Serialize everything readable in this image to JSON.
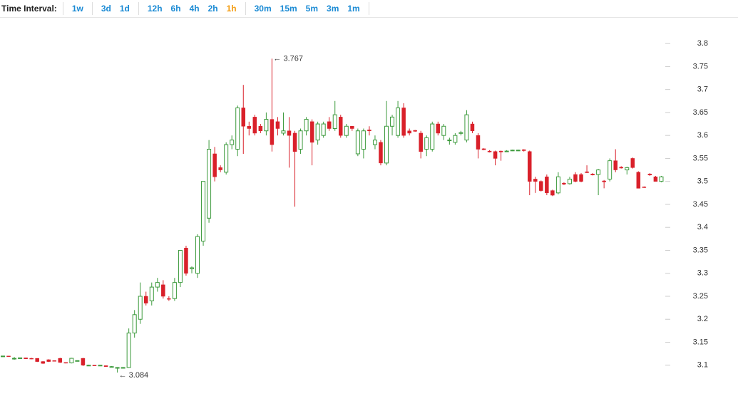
{
  "toolbar": {
    "label": "Time Interval:",
    "groups": [
      [
        "1w"
      ],
      [
        "3d",
        "1d"
      ],
      [
        "12h",
        "6h",
        "4h",
        "2h",
        "1h"
      ],
      [
        "30m",
        "15m",
        "5m",
        "3m",
        "1m"
      ]
    ],
    "selected": "1h"
  },
  "chart_data": {
    "type": "candlestick",
    "up_color": "#3c9a3c",
    "down_color": "#d9202a",
    "ylim": [
      3.033,
      3.856
    ],
    "yticks": [
      3.1,
      3.15,
      3.2,
      3.25,
      3.3,
      3.35,
      3.4,
      3.45,
      3.5,
      3.55,
      3.6,
      3.65,
      3.7,
      3.75,
      3.8
    ],
    "annotations": [
      {
        "text": "← 3.767",
        "value": 3.767
      },
      {
        "text": "← 3.084",
        "value": 3.084
      }
    ],
    "candles": [
      {
        "open": 3.12,
        "high": 3.12,
        "low": 3.12,
        "close": 3.12
      },
      {
        "open": 3.12,
        "high": 3.12,
        "low": 3.119,
        "close": 3.119
      },
      {
        "open": 3.115,
        "high": 3.118,
        "low": 3.112,
        "close": 3.115
      },
      {
        "open": 3.115,
        "high": 3.116,
        "low": 3.114,
        "close": 3.116
      },
      {
        "open": 3.116,
        "high": 3.116,
        "low": 3.114,
        "close": 3.114
      },
      {
        "open": 3.115,
        "high": 3.116,
        "low": 3.113,
        "close": 3.114
      },
      {
        "open": 3.115,
        "high": 3.115,
        "low": 3.107,
        "close": 3.108
      },
      {
        "open": 3.108,
        "high": 3.109,
        "low": 3.103,
        "close": 3.104
      },
      {
        "open": 3.112,
        "high": 3.113,
        "low": 3.107,
        "close": 3.108
      },
      {
        "open": 3.11,
        "high": 3.11,
        "low": 3.109,
        "close": 3.109
      },
      {
        "open": 3.115,
        "high": 3.116,
        "low": 3.105,
        "close": 3.106
      },
      {
        "open": 3.106,
        "high": 3.106,
        "low": 3.104,
        "close": 3.105
      },
      {
        "open": 3.105,
        "high": 3.116,
        "low": 3.104,
        "close": 3.115
      },
      {
        "open": 3.11,
        "high": 3.11,
        "low": 3.109,
        "close": 3.11
      },
      {
        "open": 3.115,
        "high": 3.116,
        "low": 3.098,
        "close": 3.1
      },
      {
        "open": 3.1,
        "high": 3.101,
        "low": 3.099,
        "close": 3.1
      },
      {
        "open": 3.1,
        "high": 3.1,
        "low": 3.099,
        "close": 3.099
      },
      {
        "open": 3.1,
        "high": 3.1,
        "low": 3.099,
        "close": 3.1
      },
      {
        "open": 3.099,
        "high": 3.099,
        "low": 3.097,
        "close": 3.097
      },
      {
        "open": 3.097,
        "high": 3.098,
        "low": 3.096,
        "close": 3.097
      },
      {
        "open": 3.095,
        "high": 3.096,
        "low": 3.084,
        "close": 3.095
      },
      {
        "open": 3.095,
        "high": 3.096,
        "low": 3.094,
        "close": 3.095
      },
      {
        "open": 3.095,
        "high": 3.18,
        "low": 3.094,
        "close": 3.17
      },
      {
        "open": 3.17,
        "high": 3.22,
        "low": 3.16,
        "close": 3.21
      },
      {
        "open": 3.2,
        "high": 3.28,
        "low": 3.19,
        "close": 3.25
      },
      {
        "open": 3.25,
        "high": 3.26,
        "low": 3.23,
        "close": 3.235
      },
      {
        "open": 3.24,
        "high": 3.28,
        "low": 3.23,
        "close": 3.27
      },
      {
        "open": 3.27,
        "high": 3.29,
        "low": 3.26,
        "close": 3.28
      },
      {
        "open": 3.275,
        "high": 3.285,
        "low": 3.245,
        "close": 3.25
      },
      {
        "open": 3.245,
        "high": 3.25,
        "low": 3.24,
        "close": 3.244
      },
      {
        "open": 3.245,
        "high": 3.29,
        "low": 3.24,
        "close": 3.28
      },
      {
        "open": 3.28,
        "high": 3.35,
        "low": 3.27,
        "close": 3.35
      },
      {
        "open": 3.355,
        "high": 3.36,
        "low": 3.295,
        "close": 3.3
      },
      {
        "open": 3.31,
        "high": 3.315,
        "low": 3.3,
        "close": 3.312
      },
      {
        "open": 3.3,
        "high": 3.385,
        "low": 3.29,
        "close": 3.38
      },
      {
        "open": 3.37,
        "high": 3.5,
        "low": 3.36,
        "close": 3.5
      },
      {
        "open": 3.42,
        "high": 3.59,
        "low": 3.41,
        "close": 3.57
      },
      {
        "open": 3.56,
        "high": 3.575,
        "low": 3.5,
        "close": 3.51
      },
      {
        "open": 3.53,
        "high": 3.535,
        "low": 3.52,
        "close": 3.525
      },
      {
        "open": 3.52,
        "high": 3.585,
        "low": 3.515,
        "close": 3.58
      },
      {
        "open": 3.58,
        "high": 3.6,
        "low": 3.57,
        "close": 3.59
      },
      {
        "open": 3.57,
        "high": 3.665,
        "low": 3.555,
        "close": 3.66
      },
      {
        "open": 3.66,
        "high": 3.71,
        "low": 3.56,
        "close": 3.62
      },
      {
        "open": 3.62,
        "high": 3.63,
        "low": 3.6,
        "close": 3.615
      },
      {
        "open": 3.64,
        "high": 3.645,
        "low": 3.6,
        "close": 3.605
      },
      {
        "open": 3.62,
        "high": 3.625,
        "low": 3.605,
        "close": 3.61
      },
      {
        "open": 3.61,
        "high": 3.65,
        "low": 3.6,
        "close": 3.635
      },
      {
        "open": 3.635,
        "high": 3.767,
        "low": 3.565,
        "close": 3.58
      },
      {
        "open": 3.63,
        "high": 3.64,
        "low": 3.6,
        "close": 3.615
      },
      {
        "open": 3.605,
        "high": 3.65,
        "low": 3.6,
        "close": 3.61
      },
      {
        "open": 3.61,
        "high": 3.64,
        "low": 3.53,
        "close": 3.6
      },
      {
        "open": 3.605,
        "high": 3.61,
        "low": 3.445,
        "close": 3.565
      },
      {
        "open": 3.57,
        "high": 3.615,
        "low": 3.56,
        "close": 3.61
      },
      {
        "open": 3.61,
        "high": 3.64,
        "low": 3.6,
        "close": 3.635
      },
      {
        "open": 3.63,
        "high": 3.635,
        "low": 3.535,
        "close": 3.585
      },
      {
        "open": 3.59,
        "high": 3.63,
        "low": 3.58,
        "close": 3.625
      },
      {
        "open": 3.6,
        "high": 3.63,
        "low": 3.595,
        "close": 3.625
      },
      {
        "open": 3.63,
        "high": 3.64,
        "low": 3.61,
        "close": 3.615
      },
      {
        "open": 3.615,
        "high": 3.675,
        "low": 3.61,
        "close": 3.645
      },
      {
        "open": 3.64,
        "high": 3.645,
        "low": 3.595,
        "close": 3.6
      },
      {
        "open": 3.6,
        "high": 3.625,
        "low": 3.595,
        "close": 3.62
      },
      {
        "open": 3.62,
        "high": 3.62,
        "low": 3.61,
        "close": 3.615
      },
      {
        "open": 3.56,
        "high": 3.615,
        "low": 3.555,
        "close": 3.61
      },
      {
        "open": 3.57,
        "high": 3.615,
        "low": 3.55,
        "close": 3.61
      },
      {
        "open": 3.612,
        "high": 3.62,
        "low": 3.6,
        "close": 3.61
      },
      {
        "open": 3.58,
        "high": 3.6,
        "low": 3.57,
        "close": 3.59
      },
      {
        "open": 3.585,
        "high": 3.59,
        "low": 3.535,
        "close": 3.54
      },
      {
        "open": 3.54,
        "high": 3.675,
        "low": 3.535,
        "close": 3.62
      },
      {
        "open": 3.62,
        "high": 3.645,
        "low": 3.6,
        "close": 3.64
      },
      {
        "open": 3.6,
        "high": 3.675,
        "low": 3.595,
        "close": 3.66
      },
      {
        "open": 3.66,
        "high": 3.67,
        "low": 3.595,
        "close": 3.6
      },
      {
        "open": 3.61,
        "high": 3.615,
        "low": 3.6,
        "close": 3.605
      },
      {
        "open": 3.611,
        "high": 3.612,
        "low": 3.608,
        "close": 3.609
      },
      {
        "open": 3.605,
        "high": 3.61,
        "low": 3.55,
        "close": 3.565
      },
      {
        "open": 3.57,
        "high": 3.6,
        "low": 3.555,
        "close": 3.595
      },
      {
        "open": 3.57,
        "high": 3.63,
        "low": 3.565,
        "close": 3.625
      },
      {
        "open": 3.625,
        "high": 3.63,
        "low": 3.6,
        "close": 3.605
      },
      {
        "open": 3.6,
        "high": 3.625,
        "low": 3.59,
        "close": 3.62
      },
      {
        "open": 3.59,
        "high": 3.595,
        "low": 3.58,
        "close": 3.59
      },
      {
        "open": 3.585,
        "high": 3.605,
        "low": 3.58,
        "close": 3.6
      },
      {
        "open": 3.605,
        "high": 3.61,
        "low": 3.6,
        "close": 3.606
      },
      {
        "open": 3.59,
        "high": 3.655,
        "low": 3.585,
        "close": 3.645
      },
      {
        "open": 3.625,
        "high": 3.63,
        "low": 3.605,
        "close": 3.61
      },
      {
        "open": 3.6,
        "high": 3.605,
        "low": 3.55,
        "close": 3.57
      },
      {
        "open": 3.571,
        "high": 3.572,
        "low": 3.568,
        "close": 3.569
      },
      {
        "open": 3.566,
        "high": 3.568,
        "low": 3.563,
        "close": 3.564
      },
      {
        "open": 3.565,
        "high": 3.567,
        "low": 3.535,
        "close": 3.55
      },
      {
        "open": 3.566,
        "high": 3.567,
        "low": 3.545,
        "close": 3.564
      },
      {
        "open": 3.565,
        "high": 3.568,
        "low": 3.564,
        "close": 3.566
      },
      {
        "open": 3.567,
        "high": 3.569,
        "low": 3.566,
        "close": 3.568
      },
      {
        "open": 3.568,
        "high": 3.569,
        "low": 3.566,
        "close": 3.568
      },
      {
        "open": 3.569,
        "high": 3.57,
        "low": 3.565,
        "close": 3.567
      },
      {
        "open": 3.565,
        "high": 3.567,
        "low": 3.47,
        "close": 3.5
      },
      {
        "open": 3.505,
        "high": 3.51,
        "low": 3.475,
        "close": 3.5
      },
      {
        "open": 3.5,
        "high": 3.502,
        "low": 3.478,
        "close": 3.48
      },
      {
        "open": 3.51,
        "high": 3.515,
        "low": 3.47,
        "close": 3.475
      },
      {
        "open": 3.48,
        "high": 3.482,
        "low": 3.468,
        "close": 3.47
      },
      {
        "open": 3.475,
        "high": 3.52,
        "low": 3.472,
        "close": 3.51
      },
      {
        "open": 3.496,
        "high": 3.498,
        "low": 3.492,
        "close": 3.494
      },
      {
        "open": 3.495,
        "high": 3.51,
        "low": 3.493,
        "close": 3.505
      },
      {
        "open": 3.515,
        "high": 3.52,
        "low": 3.498,
        "close": 3.5
      },
      {
        "open": 3.515,
        "high": 3.518,
        "low": 3.498,
        "close": 3.5
      },
      {
        "open": 3.521,
        "high": 3.535,
        "low": 3.518,
        "close": 3.519
      },
      {
        "open": 3.516,
        "high": 3.518,
        "low": 3.513,
        "close": 3.514
      },
      {
        "open": 3.515,
        "high": 3.527,
        "low": 3.47,
        "close": 3.525
      },
      {
        "open": 3.501,
        "high": 3.503,
        "low": 3.485,
        "close": 3.499
      },
      {
        "open": 3.505,
        "high": 3.55,
        "low": 3.5,
        "close": 3.545
      },
      {
        "open": 3.545,
        "high": 3.57,
        "low": 3.52,
        "close": 3.525
      },
      {
        "open": 3.531,
        "high": 3.533,
        "low": 3.528,
        "close": 3.529
      },
      {
        "open": 3.525,
        "high": 3.532,
        "low": 3.515,
        "close": 3.53
      },
      {
        "open": 3.55,
        "high": 3.552,
        "low": 3.528,
        "close": 3.53
      },
      {
        "open": 3.52,
        "high": 3.522,
        "low": 3.485,
        "close": 3.485
      },
      {
        "open": 3.488,
        "high": 3.489,
        "low": 3.486,
        "close": 3.487
      },
      {
        "open": 3.516,
        "high": 3.518,
        "low": 3.512,
        "close": 3.514
      },
      {
        "open": 3.51,
        "high": 3.512,
        "low": 3.5,
        "close": 3.5
      },
      {
        "open": 3.5,
        "high": 3.512,
        "low": 3.498,
        "close": 3.51
      }
    ]
  }
}
